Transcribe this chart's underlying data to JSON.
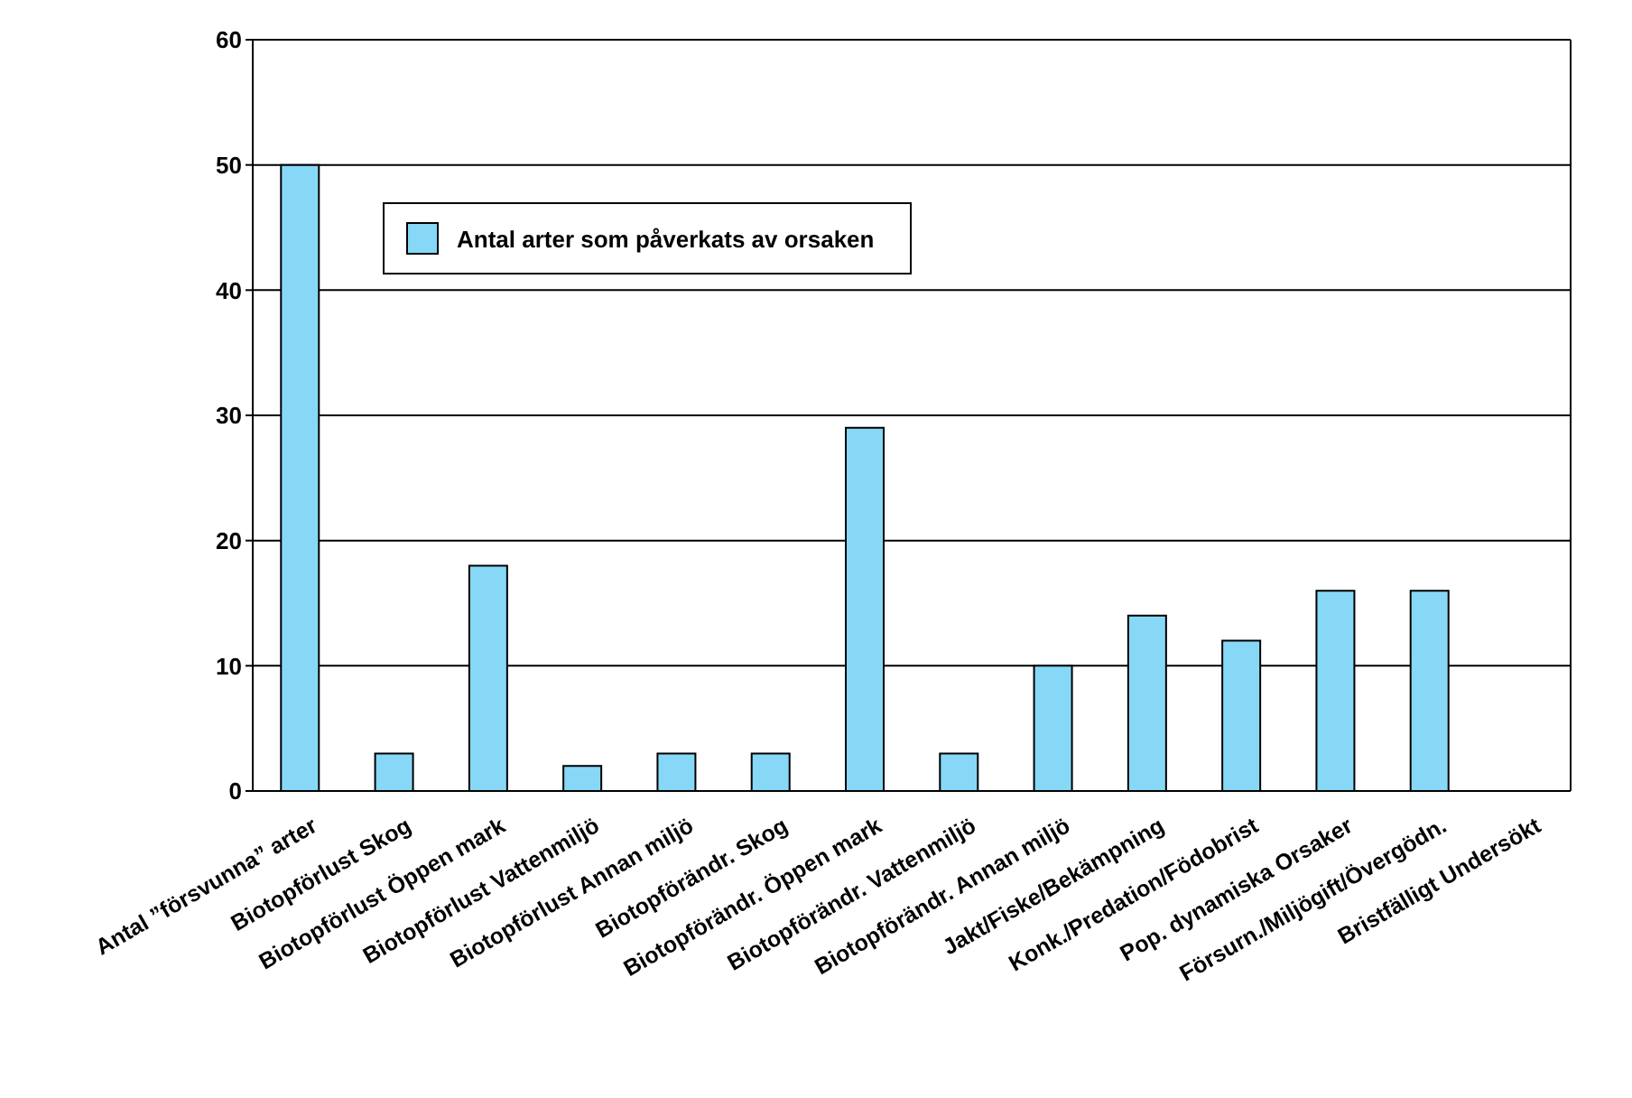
{
  "chart_data": {
    "type": "bar",
    "categories": [
      "Antal ”försvunna” arter",
      "Biotopförlust Skog",
      "Biotopförlust Öppen mark",
      "Biotopförlust Vattenmiljö",
      "Biotopförlust Annan miljö",
      "Biotopförändr. Skog",
      "Biotopförändr. Öppen mark",
      "Biotopförändr. Vattenmiljö",
      "Biotopförändr. Annan miljö",
      "Jakt/Fiske/Bekämpning",
      "Konk./Predation/Födobrist",
      "Pop. dynamiska Orsaker",
      "Försurn./Miljögift/Övergödn.",
      "Bristfälligt Undersökt"
    ],
    "series": [
      {
        "name": "Antal arter som påverkats av orsaken",
        "color": "#87d8f7",
        "values": [
          50,
          3,
          18,
          2,
          3,
          3,
          29,
          3,
          10,
          14,
          12,
          16,
          16,
          0
        ]
      }
    ],
    "ylim": [
      0,
      60
    ],
    "yticks": [
      0,
      10,
      20,
      30,
      40,
      50,
      60
    ],
    "grid": "y",
    "legend": "top left"
  }
}
